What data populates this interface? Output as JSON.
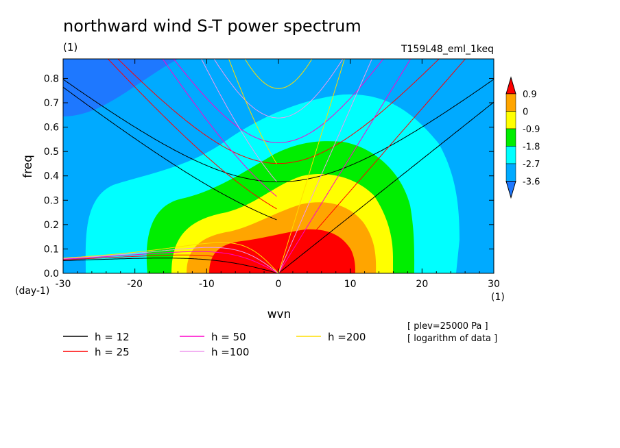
{
  "chart_data": {
    "type": "heatmap",
    "title": "northward wind S-T power spectrum",
    "subtitle_left": "(1)",
    "subtitle_right": "T159L48_eml_1keq",
    "xlabel": "wvn",
    "ylabel": "freq",
    "x_unit": "(1)",
    "y_unit": "(day-1)",
    "xlim": [
      -30,
      30
    ],
    "ylim": [
      0,
      0.88
    ],
    "x_ticks": [
      -30,
      -20,
      -10,
      0,
      10,
      20,
      30
    ],
    "y_ticks": [
      0.0,
      0.1,
      0.2,
      0.3,
      0.4,
      0.5,
      0.6,
      0.7,
      0.8
    ],
    "x_tick_labels": [
      "-30",
      "-20",
      "-10",
      "0",
      "10",
      "20",
      "30"
    ],
    "y_tick_labels": [
      "0.0",
      "0.1",
      "0.2",
      "0.3",
      "0.4",
      "0.5",
      "0.6",
      "0.7",
      "0.8"
    ],
    "colorbar": {
      "labels": [
        "0.9",
        "0",
        "-0.9",
        "-1.8",
        "-2.7",
        "-3.6"
      ],
      "levels": [
        0.9,
        0,
        -0.9,
        -1.8,
        -2.7,
        -3.6
      ],
      "colors": [
        "#ff0000",
        "#ffa500",
        "#ffff00",
        "#00ee00",
        "#00ffff",
        "#00aaff",
        "#1e78ff"
      ]
    },
    "contour_fill_colors": [
      "#1e78ff",
      "#00aaff",
      "#00ffff",
      "#00ee00",
      "#ffff00",
      "#ffa500",
      "#ff0000"
    ],
    "dispersion_curves": [
      {
        "label": "h = 12",
        "h": 12,
        "color": "#000000"
      },
      {
        "label": "h = 25",
        "h": 25,
        "color": "#ff0000"
      },
      {
        "label": "h = 50",
        "h": 50,
        "color": "#ff00cc"
      },
      {
        "label": "h =100",
        "h": 100,
        "color": "#ee99ee"
      },
      {
        "label": "h =200",
        "h": 200,
        "color": "#ffdd00"
      }
    ],
    "annotations": [
      "[ plev=25000 Pa ]",
      "[ logarithm of data ]"
    ]
  }
}
